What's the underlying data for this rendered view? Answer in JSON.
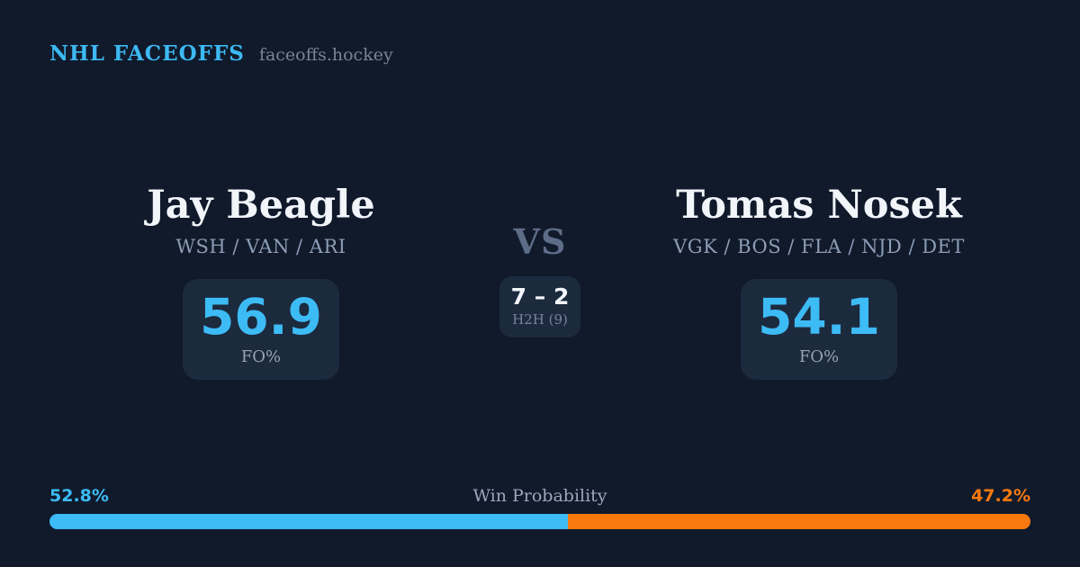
{
  "header": {
    "brand": "NHL FACEOFFS",
    "site": "faceoffs.hockey"
  },
  "players": {
    "left": {
      "name": "Jay Beagle",
      "teams": "WSH / VAN / ARI",
      "fo_pct": "56.9",
      "stat_label": "FO%"
    },
    "right": {
      "name": "Tomas Nosek",
      "teams": "VGK / BOS / FLA / NJD / DET",
      "fo_pct": "54.1",
      "stat_label": "FO%"
    }
  },
  "center": {
    "vs": "VS",
    "h2h_score": "7 – 2",
    "h2h_label": "H2H (9)"
  },
  "win_probability": {
    "title": "Win Probability",
    "left_label": "52.8%",
    "right_label": "47.2%"
  },
  "chart_data": {
    "type": "bar",
    "title": "Win Probability",
    "categories": [
      "Jay Beagle",
      "Tomas Nosek"
    ],
    "values": [
      52.8,
      47.2
    ],
    "value_labels": [
      "52.8%",
      "47.2%"
    ],
    "faceoff_pct": [
      56.9,
      54.1
    ],
    "head_to_head": {
      "score": "7 – 2",
      "total_faceoffs": 9
    },
    "xlim": [
      0,
      100
    ],
    "legend_position": "none",
    "orientation": "horizontal-stacked"
  },
  "colors": {
    "background": "#101a2b",
    "card": "#1c2a3e",
    "accent_blue": "#3dbbf5",
    "accent_orange": "#f9790f",
    "name_text": "#f1f5fa",
    "muted_text": "#8c9db6",
    "vs_text": "#5d6c87"
  }
}
